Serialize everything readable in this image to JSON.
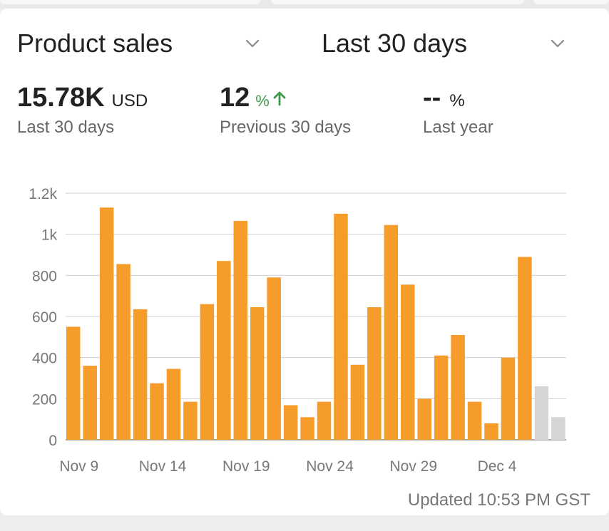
{
  "product_selector": {
    "label": "Product sales"
  },
  "range_selector": {
    "label": "Last 30 days"
  },
  "metrics": {
    "total": {
      "value": "15.78K",
      "unit": "USD",
      "caption": "Last 30 days"
    },
    "previous": {
      "value": "12",
      "unit": "%",
      "caption": "Previous 30 days",
      "trend": "up",
      "color": "#3f9a4a"
    },
    "last_year": {
      "value": "--",
      "unit": "%",
      "caption": "Last year"
    }
  },
  "updated": "Updated 10:53 PM GST",
  "chart_data": {
    "type": "bar",
    "title": "",
    "xlabel": "",
    "ylabel": "",
    "ylim": [
      0,
      1200
    ],
    "yticks": [
      0,
      200,
      400,
      600,
      800,
      1000,
      1200
    ],
    "ytick_labels": [
      "0",
      "200",
      "400",
      "600",
      "800",
      "1k",
      "1.2k"
    ],
    "grid": true,
    "categories": [
      "Nov 9",
      "Nov 10",
      "Nov 11",
      "Nov 12",
      "Nov 13",
      "Nov 14",
      "Nov 15",
      "Nov 16",
      "Nov 17",
      "Nov 18",
      "Nov 19",
      "Nov 20",
      "Nov 21",
      "Nov 22",
      "Nov 23",
      "Nov 24",
      "Nov 25",
      "Nov 26",
      "Nov 27",
      "Nov 28",
      "Nov 29",
      "Nov 30",
      "Dec 1",
      "Dec 2",
      "Dec 3",
      "Dec 4",
      "Dec 5",
      "Dec 6",
      "Dec 7",
      "Dec 8"
    ],
    "xtick_labels": [
      "Nov 9",
      "Nov 14",
      "Nov 19",
      "Nov 24",
      "Nov 29",
      "Dec 4"
    ],
    "values": [
      550,
      360,
      1130,
      855,
      635,
      275,
      345,
      185,
      660,
      870,
      1065,
      645,
      790,
      168,
      110,
      185,
      1100,
      365,
      645,
      1045,
      755,
      200,
      410,
      510,
      185,
      80,
      400,
      890,
      260,
      110
    ],
    "incomplete_from_index": 28,
    "colors": {
      "bar": "#f59c2a",
      "incomplete_bar": "#d6d6d6",
      "grid": "#cfcfcf",
      "axis": "#888888",
      "tick_label": "#777777"
    }
  }
}
